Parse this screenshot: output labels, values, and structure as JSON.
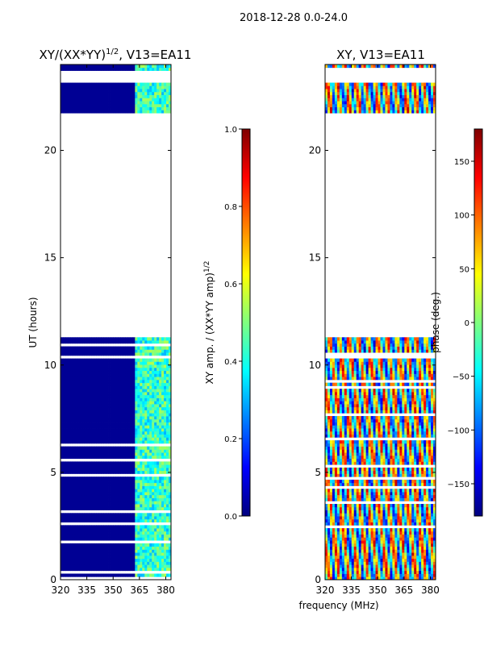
{
  "figure_title": "2018-12-28 0.0-24.0",
  "shared_xlabel": "frequency (MHz)",
  "colors": {
    "background": "#000080",
    "jet": [
      "#00007f",
      "#0000ff",
      "#007fff",
      "#00ffff",
      "#7fff7f",
      "#ffff00",
      "#ff7f00",
      "#ff0000",
      "#7f0000"
    ]
  },
  "chart_data": [
    {
      "type": "heatmap",
      "title_main": "XY/(XX*YY)",
      "title_sup": "1/2",
      "title_tail": ", V13=EA11",
      "xlabel": "",
      "ylabel": "UT (hours)",
      "xlim": [
        320,
        383
      ],
      "ylim": [
        0,
        24
      ],
      "xticks": [
        320,
        335,
        350,
        365,
        380
      ],
      "yticks": [
        0,
        5,
        10,
        15,
        20
      ],
      "ytick_labels": [
        "0",
        "5",
        "10",
        "15",
        "20"
      ],
      "data_gaps_hours": [
        [
          11.25,
          21.7
        ],
        [
          22.0,
          22.05
        ],
        [
          23.2,
          23.75
        ]
      ],
      "bright_band_mhz": [
        363,
        383
      ],
      "colorbar": {
        "label_main": "XY amp. / (XX*YY amp)",
        "label_sup": "1/2",
        "range": [
          0.0,
          1.0
        ],
        "ticks": [
          "0.0",
          "0.2",
          "0.4",
          "0.6",
          "0.8",
          "1.0"
        ]
      }
    },
    {
      "type": "heatmap",
      "title": "XY, V13=EA11",
      "xlabel": "frequency (MHz)",
      "ylabel": "",
      "xlim": [
        320,
        383
      ],
      "ylim": [
        0,
        24
      ],
      "xticks": [
        320,
        335,
        350,
        365,
        380
      ],
      "yticks": [
        0,
        5,
        10,
        15,
        20
      ],
      "ytick_labels": [
        "0",
        "5",
        "10",
        "15",
        "20"
      ],
      "data_gaps_hours": [
        [
          11.25,
          21.7
        ],
        [
          22.0,
          22.05
        ],
        [
          23.2,
          23.75
        ]
      ],
      "colorbar": {
        "label": "phase (deg.)",
        "range": [
          -180,
          180
        ],
        "ticks": [
          "−150",
          "−100",
          "−50",
          "0",
          "50",
          "100",
          "150"
        ],
        "tick_values": [
          -150,
          -100,
          -50,
          0,
          50,
          100,
          150
        ]
      }
    }
  ]
}
